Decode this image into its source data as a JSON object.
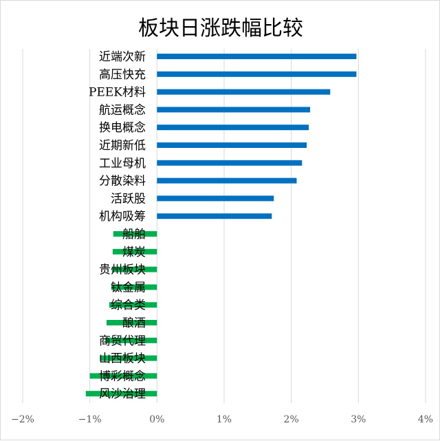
{
  "chart_data": {
    "type": "bar",
    "orientation": "horizontal",
    "title": "板块日涨跌幅比较",
    "categories": [
      "近端次新",
      "高压快充",
      "PEEK材料",
      "航运概念",
      "换电概念",
      "近期新低",
      "工业母机",
      "分散染料",
      "活跃股",
      "机构吸筹",
      "船舶",
      "煤炭",
      "贵州板块",
      "钛金属",
      "综合类",
      "酿酒",
      "商贸代理",
      "山西板块",
      "博彩概念",
      "风沙治理"
    ],
    "values": [
      2.97,
      2.97,
      2.58,
      2.28,
      2.26,
      2.23,
      2.16,
      2.08,
      1.74,
      1.71,
      -0.65,
      -0.66,
      -0.67,
      -0.68,
      -0.71,
      -0.75,
      -0.77,
      -0.85,
      -1.0,
      -1.06
    ],
    "xlim": [
      -2,
      4
    ],
    "xticks": [
      -2,
      -1,
      0,
      1,
      2,
      3,
      4
    ],
    "xtick_labels": [
      "−2%",
      "−1%",
      "0%",
      "1%",
      "2%",
      "3%",
      "4%"
    ],
    "grid": "vertical",
    "legend": "none",
    "colors": {
      "positive": "#0070c0",
      "negative": "#00b050"
    }
  }
}
